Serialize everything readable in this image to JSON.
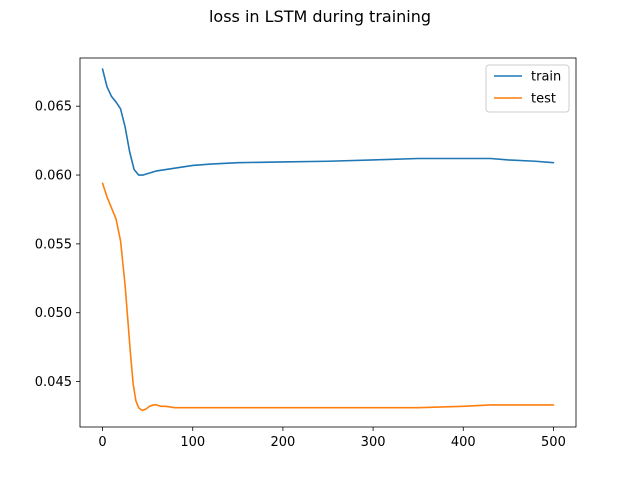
{
  "chart_data": {
    "type": "line",
    "title": "loss in LSTM during training",
    "xlabel": "",
    "ylabel": "",
    "xlim": [
      -25,
      525
    ],
    "ylim": [
      0.0417,
      0.0685
    ],
    "xticks": [
      0,
      100,
      200,
      300,
      400,
      500
    ],
    "yticks": [
      0.045,
      0.05,
      0.055,
      0.06,
      0.065
    ],
    "ytick_labels": [
      "0.045",
      "0.050",
      "0.055",
      "0.060",
      "0.065"
    ],
    "grid": false,
    "legend_position": "top-right",
    "series": [
      {
        "name": "train",
        "color": "#1f77b4",
        "x": [
          0,
          5,
          10,
          15,
          20,
          25,
          30,
          35,
          40,
          45,
          50,
          60,
          70,
          80,
          100,
          120,
          150,
          200,
          250,
          300,
          350,
          380,
          400,
          430,
          450,
          480,
          500
        ],
        "y": [
          0.0677,
          0.0664,
          0.0657,
          0.0653,
          0.0648,
          0.0635,
          0.0617,
          0.0604,
          0.06,
          0.06,
          0.0601,
          0.0603,
          0.0604,
          0.0605,
          0.0607,
          0.0608,
          0.0609,
          0.06095,
          0.061,
          0.0611,
          0.0612,
          0.0612,
          0.0612,
          0.0612,
          0.0611,
          0.061,
          0.0609
        ]
      },
      {
        "name": "test",
        "color": "#ff7f0e",
        "x": [
          0,
          5,
          10,
          15,
          20,
          25,
          28,
          31,
          34,
          37,
          40,
          44,
          48,
          52,
          56,
          60,
          65,
          70,
          80,
          100,
          150,
          200,
          250,
          300,
          320,
          350,
          400,
          430,
          450,
          500
        ],
        "y": [
          0.0594,
          0.0584,
          0.0576,
          0.0568,
          0.0552,
          0.052,
          0.0495,
          0.047,
          0.0448,
          0.0436,
          0.0431,
          0.0429,
          0.043,
          0.0432,
          0.0433,
          0.0433,
          0.0432,
          0.0432,
          0.0431,
          0.0431,
          0.0431,
          0.0431,
          0.0431,
          0.0431,
          0.0431,
          0.0431,
          0.0432,
          0.0433,
          0.0433,
          0.0433
        ]
      }
    ]
  }
}
